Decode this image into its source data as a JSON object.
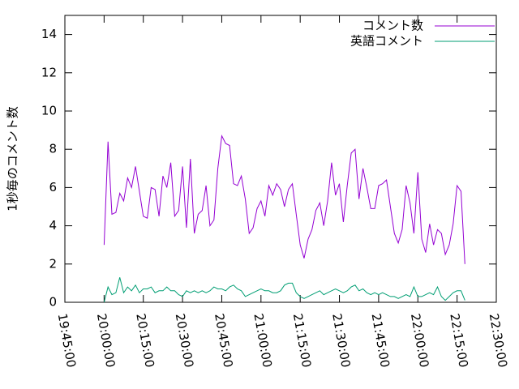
{
  "chart_data": {
    "type": "line",
    "y_label": "1秒毎のコメント数",
    "x": [
      "20:00:00",
      "20:01:30",
      "20:03:00",
      "20:04:30",
      "20:06:00",
      "20:07:30",
      "20:09:00",
      "20:10:30",
      "20:12:00",
      "20:13:30",
      "20:15:00",
      "20:16:30",
      "20:18:00",
      "20:19:30",
      "20:21:00",
      "20:22:30",
      "20:24:00",
      "20:25:30",
      "20:27:00",
      "20:28:30",
      "20:30:00",
      "20:31:30",
      "20:33:00",
      "20:34:30",
      "20:36:00",
      "20:37:30",
      "20:39:00",
      "20:40:30",
      "20:42:00",
      "20:43:30",
      "20:45:00",
      "20:46:30",
      "20:48:00",
      "20:49:30",
      "20:51:00",
      "20:52:30",
      "20:54:00",
      "20:55:30",
      "20:57:00",
      "20:58:30",
      "21:00:00",
      "21:01:30",
      "21:03:00",
      "21:04:30",
      "21:06:00",
      "21:07:30",
      "21:09:00",
      "21:10:30",
      "21:12:00",
      "21:13:30",
      "21:15:00",
      "21:16:30",
      "21:18:00",
      "21:19:30",
      "21:21:00",
      "21:22:30",
      "21:24:00",
      "21:25:30",
      "21:27:00",
      "21:28:30",
      "21:30:00",
      "21:31:30",
      "21:33:00",
      "21:34:30",
      "21:36:00",
      "21:37:30",
      "21:39:00",
      "21:40:30",
      "21:42:00",
      "21:43:30",
      "21:45:00",
      "21:46:30",
      "21:48:00",
      "21:49:30",
      "21:51:00",
      "21:52:30",
      "21:54:00",
      "21:55:30",
      "21:57:00",
      "21:58:30",
      "22:00:00",
      "22:01:30",
      "22:03:00",
      "22:04:30",
      "22:06:00",
      "22:07:30",
      "22:09:00",
      "22:10:30",
      "22:12:00",
      "22:13:30",
      "22:15:00",
      "22:16:30",
      "22:18:00"
    ],
    "series": [
      {
        "name": "コメント数",
        "color": "#9400d3",
        "values": [
          3.0,
          8.4,
          4.6,
          4.7,
          5.7,
          5.3,
          6.5,
          6.0,
          7.1,
          5.8,
          4.5,
          4.4,
          6.0,
          5.9,
          4.5,
          6.6,
          6.0,
          7.3,
          4.5,
          4.8,
          7.1,
          3.9,
          7.5,
          3.6,
          4.6,
          4.8,
          6.1,
          4.0,
          4.3,
          7.0,
          8.7,
          8.3,
          8.2,
          6.2,
          6.1,
          6.6,
          5.4,
          3.6,
          3.9,
          4.9,
          5.3,
          4.5,
          6.1,
          5.6,
          6.2,
          5.9,
          5.0,
          5.9,
          6.2,
          4.6,
          3.0,
          2.3,
          3.3,
          3.8,
          4.8,
          5.2,
          4.0,
          5.3,
          7.3,
          5.6,
          6.2,
          4.2,
          6.1,
          7.8,
          8.0,
          5.4,
          7.0,
          6.0,
          4.9,
          4.9,
          6.1,
          6.2,
          6.4,
          5.0,
          3.6,
          3.1,
          3.8,
          6.1,
          5.2,
          3.6,
          6.8,
          3.3,
          2.6,
          4.1,
          3.0,
          3.8,
          3.6,
          2.5,
          3.0,
          4.1,
          6.1,
          5.8,
          2.0
        ]
      },
      {
        "name": "英語コメント",
        "color": "#009e73",
        "values": [
          0.0,
          0.8,
          0.4,
          0.5,
          1.3,
          0.5,
          0.8,
          0.6,
          0.9,
          0.5,
          0.7,
          0.7,
          0.8,
          0.5,
          0.6,
          0.6,
          0.8,
          0.6,
          0.6,
          0.4,
          0.3,
          0.6,
          0.5,
          0.6,
          0.5,
          0.6,
          0.5,
          0.6,
          0.8,
          0.7,
          0.7,
          0.6,
          0.8,
          0.9,
          0.7,
          0.6,
          0.3,
          0.4,
          0.5,
          0.6,
          0.7,
          0.6,
          0.6,
          0.5,
          0.5,
          0.6,
          0.9,
          1.0,
          1.0,
          0.5,
          0.3,
          0.2,
          0.3,
          0.4,
          0.5,
          0.6,
          0.4,
          0.5,
          0.6,
          0.7,
          0.6,
          0.5,
          0.6,
          0.8,
          0.9,
          0.6,
          0.7,
          0.5,
          0.4,
          0.5,
          0.4,
          0.5,
          0.4,
          0.3,
          0.3,
          0.2,
          0.3,
          0.4,
          0.3,
          0.8,
          0.3,
          0.3,
          0.4,
          0.5,
          0.4,
          0.8,
          0.3,
          0.1,
          0.3,
          0.5,
          0.6,
          0.6,
          0.1
        ]
      }
    ],
    "xlim": [
      "19:45:00",
      "22:30:00"
    ],
    "xticks": [
      "19:45:00",
      "20:00:00",
      "20:15:00",
      "20:30:00",
      "20:45:00",
      "21:00:00",
      "21:15:00",
      "21:30:00",
      "21:45:00",
      "22:00:00",
      "22:15:00",
      "22:30:00"
    ],
    "ylim": [
      0,
      15
    ],
    "yticks": [
      0,
      2,
      4,
      6,
      8,
      10,
      12,
      14
    ],
    "legend": "top-right"
  }
}
